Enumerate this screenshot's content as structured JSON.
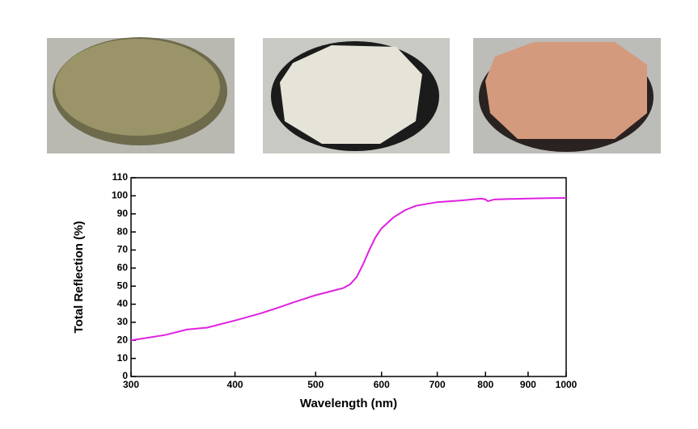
{
  "chart_data": {
    "type": "line",
    "x_label": "Wavelength (nm)",
    "y_label": "Total Reflection (%)",
    "xscale": "log",
    "xlim": [
      300,
      1000
    ],
    "xticks": [
      300,
      400,
      500,
      600,
      700,
      800,
      900,
      1000
    ],
    "ylim": [
      0,
      110
    ],
    "yticks": [
      0,
      10,
      20,
      30,
      40,
      50,
      60,
      70,
      80,
      90,
      100,
      110
    ],
    "series": [
      {
        "color": "#e020e0",
        "x": [
          300,
          330,
          350,
          370,
          400,
          430,
          450,
          470,
          500,
          520,
          540,
          550,
          560,
          570,
          580,
          590,
          600,
          620,
          640,
          660,
          700,
          750,
          790,
          800,
          805,
          820,
          850,
          900,
          950,
          1000
        ],
        "values": [
          20,
          23,
          26,
          27,
          31,
          35,
          38,
          41,
          45,
          47,
          49,
          51,
          55,
          62,
          70,
          77,
          82,
          88,
          92,
          94.5,
          96.5,
          97.5,
          98.5,
          98,
          97,
          98,
          98.2,
          98.5,
          98.7,
          98.8
        ]
      }
    ]
  }
}
